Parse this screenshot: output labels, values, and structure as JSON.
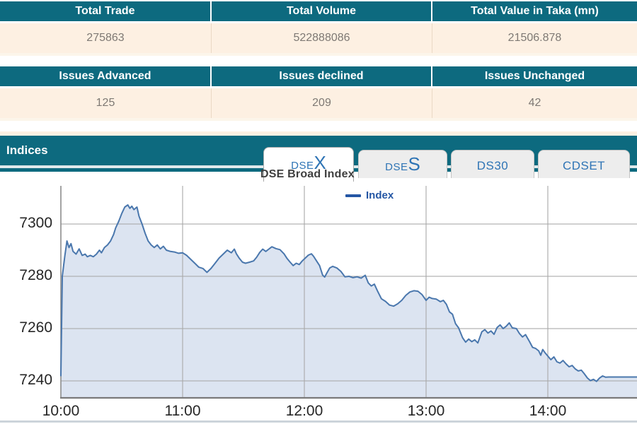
{
  "summary_table_1": {
    "headers": [
      "Total Trade",
      "Total Volume",
      "Total Value in Taka (mn)"
    ],
    "values": [
      "275863",
      "522888086",
      "21506.878"
    ]
  },
  "summary_table_2": {
    "headers": [
      "Issues Advanced",
      "Issues declined",
      "Issues Unchanged"
    ],
    "values": [
      "125",
      "209",
      "42"
    ]
  },
  "indices": {
    "section_title": "Indices",
    "active_tab": "DSEX",
    "tabs": {
      "dsex": {
        "small": "DSE",
        "big": "X"
      },
      "dses": {
        "small": "DSE",
        "big": "S"
      },
      "ds30": {
        "label": "DS30"
      },
      "cdset": {
        "label": "CDSET"
      }
    },
    "chart_title": "DSE Broad Index"
  },
  "colors": {
    "teal_header": "#0d6a7f",
    "cream_row": "#fdf0e2",
    "value_text": "#7e7974",
    "tab_text_blue": "#2e74b5",
    "legend_blue": "#2456a4",
    "line_blue": "#4a77ad",
    "area_fill": "#dce4f1",
    "gridline_gray": "#a9a9a9",
    "title_gray": "#3f3f3f"
  },
  "chart_data": {
    "type": "area",
    "title": "DSE Broad Index",
    "legend_label": "Index",
    "legend_position": "top-center",
    "grid": true,
    "x_axis": {
      "tick_labels": [
        "10:00",
        "11:00",
        "12:00",
        "13:00",
        "14:00"
      ],
      "minutes_per_tick": 60,
      "range_minutes": [
        0,
        284
      ]
    },
    "y_axis": {
      "tick_labels": [
        7240,
        7260,
        7280,
        7300
      ],
      "ylim": [
        7233,
        7313
      ]
    },
    "series": [
      {
        "name": "Index",
        "points": [
          [
            0,
            7242
          ],
          [
            0.7,
            7280
          ],
          [
            2,
            7288
          ],
          [
            3,
            7293.5
          ],
          [
            4,
            7291
          ],
          [
            5,
            7292.5
          ],
          [
            6,
            7289.5
          ],
          [
            7.5,
            7288.5
          ],
          [
            9,
            7290.5
          ],
          [
            10.5,
            7288
          ],
          [
            12,
            7288.5
          ],
          [
            13,
            7287.5
          ],
          [
            14.5,
            7288
          ],
          [
            16,
            7287.5
          ],
          [
            17.5,
            7288.5
          ],
          [
            19,
            7290
          ],
          [
            20,
            7289
          ],
          [
            21.5,
            7291
          ],
          [
            23,
            7292
          ],
          [
            24.5,
            7293.5
          ],
          [
            26,
            7296
          ],
          [
            27,
            7298.5
          ],
          [
            28.5,
            7301
          ],
          [
            30,
            7304
          ],
          [
            31.5,
            7306.5
          ],
          [
            33,
            7307.3
          ],
          [
            34,
            7306
          ],
          [
            35,
            7306.8
          ],
          [
            36,
            7305.5
          ],
          [
            37.5,
            7306.5
          ],
          [
            38.5,
            7303
          ],
          [
            40,
            7300
          ],
          [
            41.5,
            7296.5
          ],
          [
            43,
            7293.5
          ],
          [
            44.5,
            7292
          ],
          [
            46,
            7291
          ],
          [
            47.5,
            7292
          ],
          [
            49,
            7290.5
          ],
          [
            50.5,
            7291.5
          ],
          [
            52,
            7290
          ],
          [
            54,
            7289.5
          ],
          [
            56,
            7289.3
          ],
          [
            58,
            7288.8
          ],
          [
            60,
            7289
          ],
          [
            62,
            7288
          ],
          [
            64,
            7286.5
          ],
          [
            66,
            7285
          ],
          [
            68,
            7283.5
          ],
          [
            70,
            7283
          ],
          [
            72,
            7281.5
          ],
          [
            74,
            7283
          ],
          [
            76,
            7285
          ],
          [
            78,
            7287
          ],
          [
            80,
            7288.5
          ],
          [
            82,
            7290
          ],
          [
            84,
            7289
          ],
          [
            85.5,
            7290.4
          ],
          [
            86.5,
            7288.6
          ],
          [
            88,
            7286.8
          ],
          [
            89.5,
            7285.4
          ],
          [
            91,
            7285
          ],
          [
            93,
            7285.4
          ],
          [
            95,
            7285.9
          ],
          [
            96.5,
            7287.3
          ],
          [
            98,
            7289.1
          ],
          [
            99.5,
            7290.4
          ],
          [
            101,
            7289.5
          ],
          [
            102.5,
            7290.4
          ],
          [
            104,
            7291.3
          ],
          [
            106,
            7290.6
          ],
          [
            108,
            7290.2
          ],
          [
            110,
            7288.6
          ],
          [
            111.5,
            7286.8
          ],
          [
            113,
            7285.4
          ],
          [
            114.5,
            7284.1
          ],
          [
            116,
            7285
          ],
          [
            117.5,
            7284.5
          ],
          [
            119,
            7285.9
          ],
          [
            120.5,
            7287
          ],
          [
            122,
            7288.1
          ],
          [
            123.5,
            7288.6
          ],
          [
            124.5,
            7287.7
          ],
          [
            126,
            7285.9
          ],
          [
            127.5,
            7284.1
          ],
          [
            129,
            7280.5
          ],
          [
            130,
            7279.7
          ],
          [
            131,
            7281.1
          ],
          [
            132.5,
            7283.2
          ],
          [
            134,
            7283.8
          ],
          [
            136,
            7283.2
          ],
          [
            138,
            7281.9
          ],
          [
            140,
            7279.8
          ],
          [
            142,
            7280
          ],
          [
            144,
            7279.5
          ],
          [
            146,
            7279.8
          ],
          [
            148,
            7279.3
          ],
          [
            150,
            7280.4
          ],
          [
            151.5,
            7277.5
          ],
          [
            153,
            7276.3
          ],
          [
            154.5,
            7277
          ],
          [
            156,
            7274.5
          ],
          [
            158,
            7271.4
          ],
          [
            160,
            7270.4
          ],
          [
            162,
            7269
          ],
          [
            164,
            7268.6
          ],
          [
            166,
            7269.5
          ],
          [
            168,
            7270.8
          ],
          [
            170,
            7272.7
          ],
          [
            172,
            7274
          ],
          [
            174,
            7274.5
          ],
          [
            176,
            7274.3
          ],
          [
            178,
            7273
          ],
          [
            180,
            7270.8
          ],
          [
            181.5,
            7272
          ],
          [
            183,
            7271.5
          ],
          [
            185,
            7271.3
          ],
          [
            187,
            7270.3
          ],
          [
            188.5,
            7270.8
          ],
          [
            190,
            7269.3
          ],
          [
            191.5,
            7266.4
          ],
          [
            193,
            7265.5
          ],
          [
            194.5,
            7261.9
          ],
          [
            196,
            7260.3
          ],
          [
            198,
            7256.5
          ],
          [
            199.5,
            7254.8
          ],
          [
            201,
            7256
          ],
          [
            202.5,
            7255
          ],
          [
            204,
            7255.7
          ],
          [
            205.5,
            7254.5
          ],
          [
            207.5,
            7258.8
          ],
          [
            209,
            7259.6
          ],
          [
            210.5,
            7258.3
          ],
          [
            212,
            7259.1
          ],
          [
            213.5,
            7257.8
          ],
          [
            215,
            7260.4
          ],
          [
            216.5,
            7261.4
          ],
          [
            218,
            7260
          ],
          [
            219.5,
            7260.9
          ],
          [
            221,
            7262.2
          ],
          [
            222.5,
            7260.3
          ],
          [
            224.5,
            7260
          ],
          [
            226,
            7258.1
          ],
          [
            227.5,
            7256.8
          ],
          [
            229,
            7257.7
          ],
          [
            231,
            7255
          ],
          [
            232.5,
            7252.8
          ],
          [
            234,
            7252.4
          ],
          [
            235.5,
            7251.5
          ],
          [
            236.5,
            7249.8
          ],
          [
            237.5,
            7252
          ],
          [
            238.5,
            7250.9
          ],
          [
            240,
            7249.5
          ],
          [
            241.5,
            7248.1
          ],
          [
            243,
            7249.2
          ],
          [
            244.5,
            7247.3
          ],
          [
            246,
            7246.8
          ],
          [
            247.5,
            7247.8
          ],
          [
            249,
            7246.5
          ],
          [
            250.5,
            7245.4
          ],
          [
            252,
            7245.9
          ],
          [
            253.5,
            7244.6
          ],
          [
            255,
            7243.8
          ],
          [
            256.5,
            7244.1
          ],
          [
            258,
            7242.7
          ],
          [
            259.5,
            7241.1
          ],
          [
            261,
            7240.1
          ],
          [
            262.5,
            7240.6
          ],
          [
            264,
            7239.8
          ],
          [
            265.5,
            7241.1
          ],
          [
            267,
            7241.9
          ],
          [
            268.5,
            7241.4
          ],
          [
            270,
            7241.5
          ],
          [
            284,
            7241.5
          ]
        ]
      }
    ]
  }
}
